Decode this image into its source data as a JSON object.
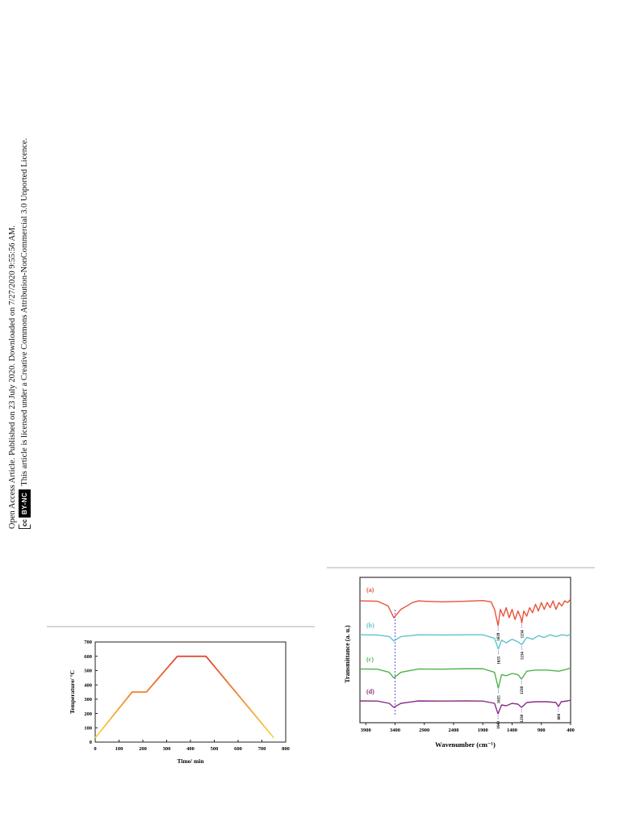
{
  "side_notice": {
    "line1": "Open Access Article. Published on 23 July 2020. Downloaded on 7/27/2020 9:55:56 AM.",
    "line2": "This article is licensed under a Creative Commons Attribution-NonCommercial 3.0 Unported Licence.",
    "badge_cc": "cc",
    "badge_by": "BY-NC"
  },
  "chart_data": [
    {
      "type": "line",
      "title": "",
      "xlabel": "Time/ min",
      "ylabel": "Temperature/ °C",
      "xlim": [
        0,
        800
      ],
      "ylim": [
        0,
        700
      ],
      "xticks": [
        0,
        100,
        200,
        300,
        400,
        500,
        600,
        700,
        800
      ],
      "yticks": [
        0,
        100,
        200,
        300,
        400,
        500,
        600,
        700
      ],
      "grid": false,
      "series": [
        {
          "x": [
            0,
            155,
            215,
            345,
            465,
            750
          ],
          "y": [
            30,
            350,
            350,
            600,
            600,
            30
          ],
          "gradient_colors": [
            "#f9d84a",
            "#f08a30",
            "#e3432a"
          ]
        }
      ]
    },
    {
      "type": "line",
      "title": "",
      "xlabel": "Wavenumber (cm⁻¹)",
      "ylabel": "Transmittance (a. u.)",
      "xlim": [
        4000,
        400
      ],
      "x_reversed": true,
      "xticks": [
        3900,
        3400,
        2900,
        2400,
        1900,
        1400,
        900,
        400
      ],
      "grid": false,
      "reference_line_x": 3400,
      "series": [
        {
          "name": "(a)",
          "color": "#e8533a",
          "x": [
            4000,
            3700,
            3520,
            3420,
            3300,
            3100,
            3000,
            2900,
            2600,
            2200,
            1900,
            1760,
            1700,
            1639,
            1600,
            1550,
            1500,
            1450,
            1400,
            1350,
            1300,
            1250,
            1234,
            1200,
            1150,
            1100,
            1050,
            1000,
            950,
            900,
            850,
            800,
            750,
            700,
            650,
            600,
            550,
            500,
            450,
            400
          ],
          "y": [
            0.05,
            0.06,
            0.2,
            0.55,
            0.3,
            0.1,
            0.05,
            0.06,
            0.08,
            0.06,
            0.04,
            0.08,
            0.3,
            0.78,
            0.3,
            0.5,
            0.25,
            0.55,
            0.3,
            0.6,
            0.35,
            0.55,
            0.7,
            0.35,
            0.5,
            0.25,
            0.4,
            0.15,
            0.35,
            0.1,
            0.3,
            0.1,
            0.25,
            0.05,
            0.3,
            0.1,
            0.2,
            0.05,
            0.1,
            0.0
          ],
          "annotations": [
            {
              "x": 1639,
              "label": "1639"
            },
            {
              "x": 1234,
              "label": "1234"
            }
          ]
        },
        {
          "name": "(b)",
          "color": "#5ec3cc",
          "x": [
            4000,
            3700,
            3500,
            3420,
            3300,
            3000,
            2600,
            2200,
            1900,
            1700,
            1635,
            1580,
            1500,
            1400,
            1300,
            1234,
            1150,
            1050,
            950,
            850,
            750,
            650,
            550,
            450,
            400
          ],
          "y": [
            0.05,
            0.06,
            0.15,
            0.4,
            0.15,
            0.05,
            0.06,
            0.05,
            0.05,
            0.25,
            0.85,
            0.35,
            0.5,
            0.3,
            0.45,
            0.6,
            0.2,
            0.3,
            0.1,
            0.2,
            0.05,
            0.15,
            0.05,
            0.1,
            0.0
          ],
          "annotations": [
            {
              "x": 1635,
              "label": "1635"
            },
            {
              "x": 1234,
              "label": "1234"
            }
          ]
        },
        {
          "name": "(c)",
          "color": "#4fb34a",
          "x": [
            4000,
            3700,
            3500,
            3420,
            3300,
            3000,
            2600,
            2200,
            1900,
            1700,
            1635,
            1580,
            1500,
            1400,
            1300,
            1238,
            1150,
            1000,
            800,
            600,
            450,
            400
          ],
          "y": [
            0.05,
            0.06,
            0.2,
            0.45,
            0.2,
            0.05,
            0.06,
            0.04,
            0.04,
            0.2,
            0.9,
            0.3,
            0.35,
            0.25,
            0.3,
            0.5,
            0.15,
            0.1,
            0.1,
            0.15,
            0.05,
            0.0
          ],
          "annotations": [
            {
              "x": 1635,
              "label": "1635"
            },
            {
              "x": 1238,
              "label": "1238"
            }
          ]
        },
        {
          "name": "(d)",
          "color": "#8a2d86",
          "x": [
            4000,
            3700,
            3500,
            3420,
            3300,
            3000,
            2600,
            2200,
            1900,
            1700,
            1640,
            1580,
            1500,
            1400,
            1300,
            1238,
            1150,
            1000,
            800,
            650,
            608,
            560,
            450,
            400
          ],
          "y": [
            0.05,
            0.06,
            0.2,
            0.45,
            0.2,
            0.05,
            0.06,
            0.05,
            0.06,
            0.2,
            0.85,
            0.3,
            0.35,
            0.2,
            0.25,
            0.45,
            0.15,
            0.1,
            0.1,
            0.15,
            0.4,
            0.1,
            0.05,
            0.0
          ],
          "annotations": [
            {
              "x": 1640,
              "label": "1640"
            },
            {
              "x": 1238,
              "label": "1238"
            },
            {
              "x": 608,
              "label": "608"
            }
          ]
        }
      ]
    }
  ]
}
